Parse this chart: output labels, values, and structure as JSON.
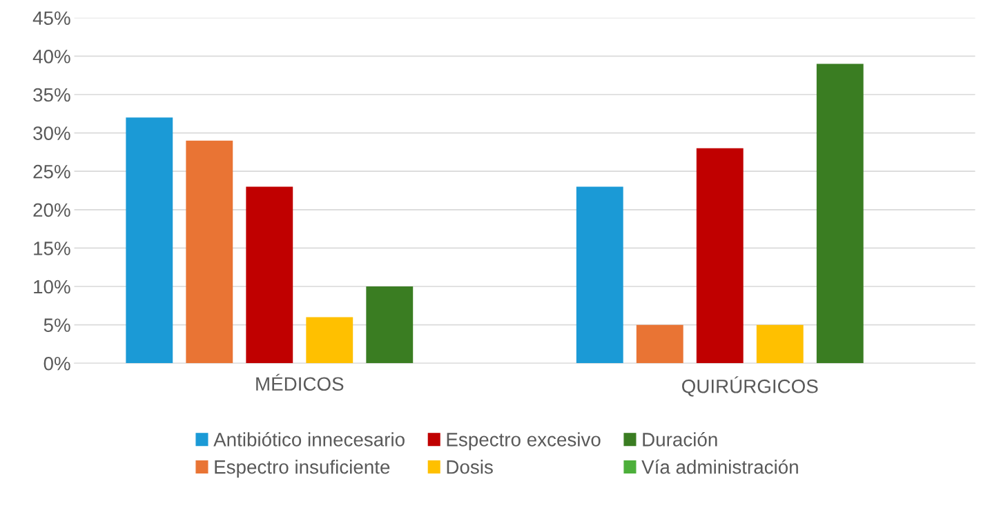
{
  "chart_data": {
    "type": "bar",
    "categories": [
      "MÉDICOS",
      "QUIRÚRGICOS"
    ],
    "series": [
      {
        "name": "Antibiótico innecesario",
        "color": "#1b9ad6",
        "values": [
          32,
          23
        ]
      },
      {
        "name": "Espectro insuficiente",
        "color": "#e97434",
        "values": [
          29,
          5
        ]
      },
      {
        "name": "Espectro excesivo",
        "color": "#c00000",
        "values": [
          23,
          28
        ]
      },
      {
        "name": "Dosis",
        "color": "#ffc000",
        "values": [
          6,
          5
        ]
      },
      {
        "name": "Duración",
        "color": "#3a7d22",
        "values": [
          10,
          39
        ]
      },
      {
        "name": "Vía administración",
        "color": "#4caf3a",
        "values": [
          0,
          0
        ]
      }
    ],
    "ylim": [
      0,
      45
    ],
    "yticks": [
      {
        "value": 0,
        "label": "0%"
      },
      {
        "value": 5,
        "label": "5%"
      },
      {
        "value": 10,
        "label": "10%"
      },
      {
        "value": 15,
        "label": "15%"
      },
      {
        "value": 20,
        "label": "20%"
      },
      {
        "value": 25,
        "label": "25%"
      },
      {
        "value": 30,
        "label": "30%"
      },
      {
        "value": 35,
        "label": "35%"
      },
      {
        "value": 40,
        "label": "40%"
      },
      {
        "value": 45,
        "label": "45%"
      }
    ],
    "grid": "y",
    "legend": "bottom"
  }
}
